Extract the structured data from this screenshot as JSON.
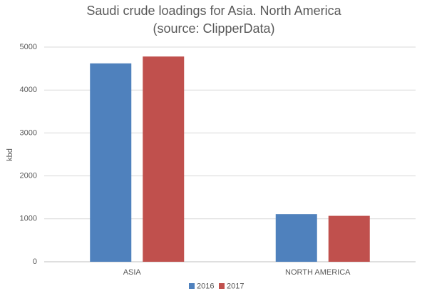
{
  "chart_data": {
    "type": "bar",
    "title": "Saudi crude loadings for Asia. North America",
    "subtitle": "(source: ClipperData)",
    "y_label": "kbd",
    "categories": [
      "ASIA",
      "NORTH AMERICA"
    ],
    "series": [
      {
        "name": "2016",
        "color": "#4f81bd",
        "values": [
          4620,
          1110
        ]
      },
      {
        "name": "2017",
        "color": "#c0504d",
        "values": [
          4780,
          1070
        ]
      }
    ],
    "ylim": [
      0,
      5000
    ],
    "yticks": [
      0,
      1000,
      2000,
      3000,
      4000,
      5000
    ],
    "grid": true,
    "legend": "bottom"
  }
}
